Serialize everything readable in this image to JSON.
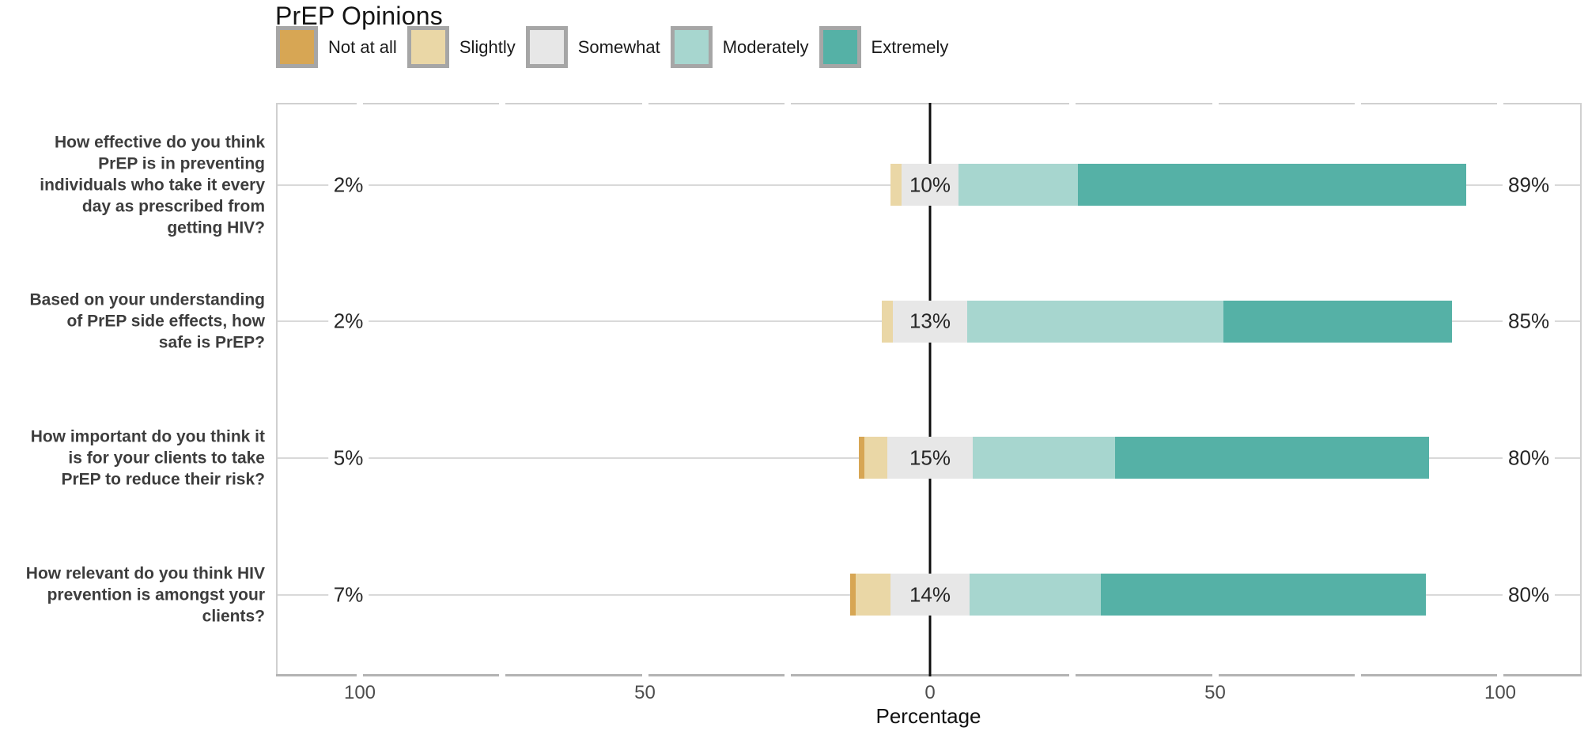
{
  "title": "PrEP Opinions",
  "legend": {
    "items": [
      {
        "label": "Not at all",
        "color": "#d7a654"
      },
      {
        "label": "Slightly",
        "color": "#ead7a6"
      },
      {
        "label": "Somewhat",
        "color": "#e7e7e7"
      },
      {
        "label": "Moderately",
        "color": "#a7d6cf"
      },
      {
        "label": "Extremely",
        "color": "#55b1a6"
      }
    ],
    "swatch_border_color": "#a6a6a6"
  },
  "chart_data": {
    "type": "bar",
    "subtype": "diverging-stacked-likert",
    "title": "PrEP Opinions",
    "xlabel": "Percentage",
    "orientation": "horizontal",
    "legend_position": "top",
    "grid": "horizontal-rows-only",
    "categories": [
      "Not at all",
      "Slightly",
      "Somewhat",
      "Moderately",
      "Extremely"
    ],
    "colors": [
      "#d7a654",
      "#ead7a6",
      "#e7e7e7",
      "#a7d6cf",
      "#55b1a6"
    ],
    "neutral_category": "Somewhat",
    "center_rule": "bars centered so half of 'Somewhat' lies each side of 0",
    "x_ticks": [
      {
        "value": -100,
        "label": "100"
      },
      {
        "value": -50,
        "label": "50"
      },
      {
        "value": 0,
        "label": "0"
      },
      {
        "value": 50,
        "label": "50"
      },
      {
        "value": 100,
        "label": "100"
      }
    ],
    "xlim": [
      -114.7,
      114.4
    ],
    "minor_tick_step": 25,
    "zero_line_color": "#0d0d0d",
    "rows": [
      {
        "question_lines": [
          "How effective do you think",
          "PrEP is in preventing",
          "individuals who take it every",
          "day as prescribed from",
          "getting HIV?"
        ],
        "values": {
          "Not at all": 0,
          "Slightly": 2,
          "Somewhat": 10,
          "Moderately": 21,
          "Extremely": 68
        },
        "left_total_label": "2%",
        "center_label": "10%",
        "right_total_label": "89%"
      },
      {
        "question_lines": [
          "Based on your understanding",
          "of PrEP side effects, how",
          "safe is PrEP?"
        ],
        "values": {
          "Not at all": 0,
          "Slightly": 2,
          "Somewhat": 13,
          "Moderately": 45,
          "Extremely": 40
        },
        "left_total_label": "2%",
        "center_label": "13%",
        "right_total_label": "85%"
      },
      {
        "question_lines": [
          "How important do you think it",
          "is for your clients to take",
          "PrEP to reduce their risk?"
        ],
        "values": {
          "Not at all": 1,
          "Slightly": 4,
          "Somewhat": 15,
          "Moderately": 25,
          "Extremely": 55
        },
        "left_total_label": "5%",
        "center_label": "15%",
        "right_total_label": "80%"
      },
      {
        "question_lines": [
          "How relevant do you think HIV",
          "prevention is amongst your",
          "clients?"
        ],
        "values": {
          "Not at all": 1,
          "Slightly": 6,
          "Somewhat": 14,
          "Moderately": 23,
          "Extremely": 57
        },
        "left_total_label": "7%",
        "center_label": "14%",
        "right_total_label": "80%"
      }
    ]
  }
}
